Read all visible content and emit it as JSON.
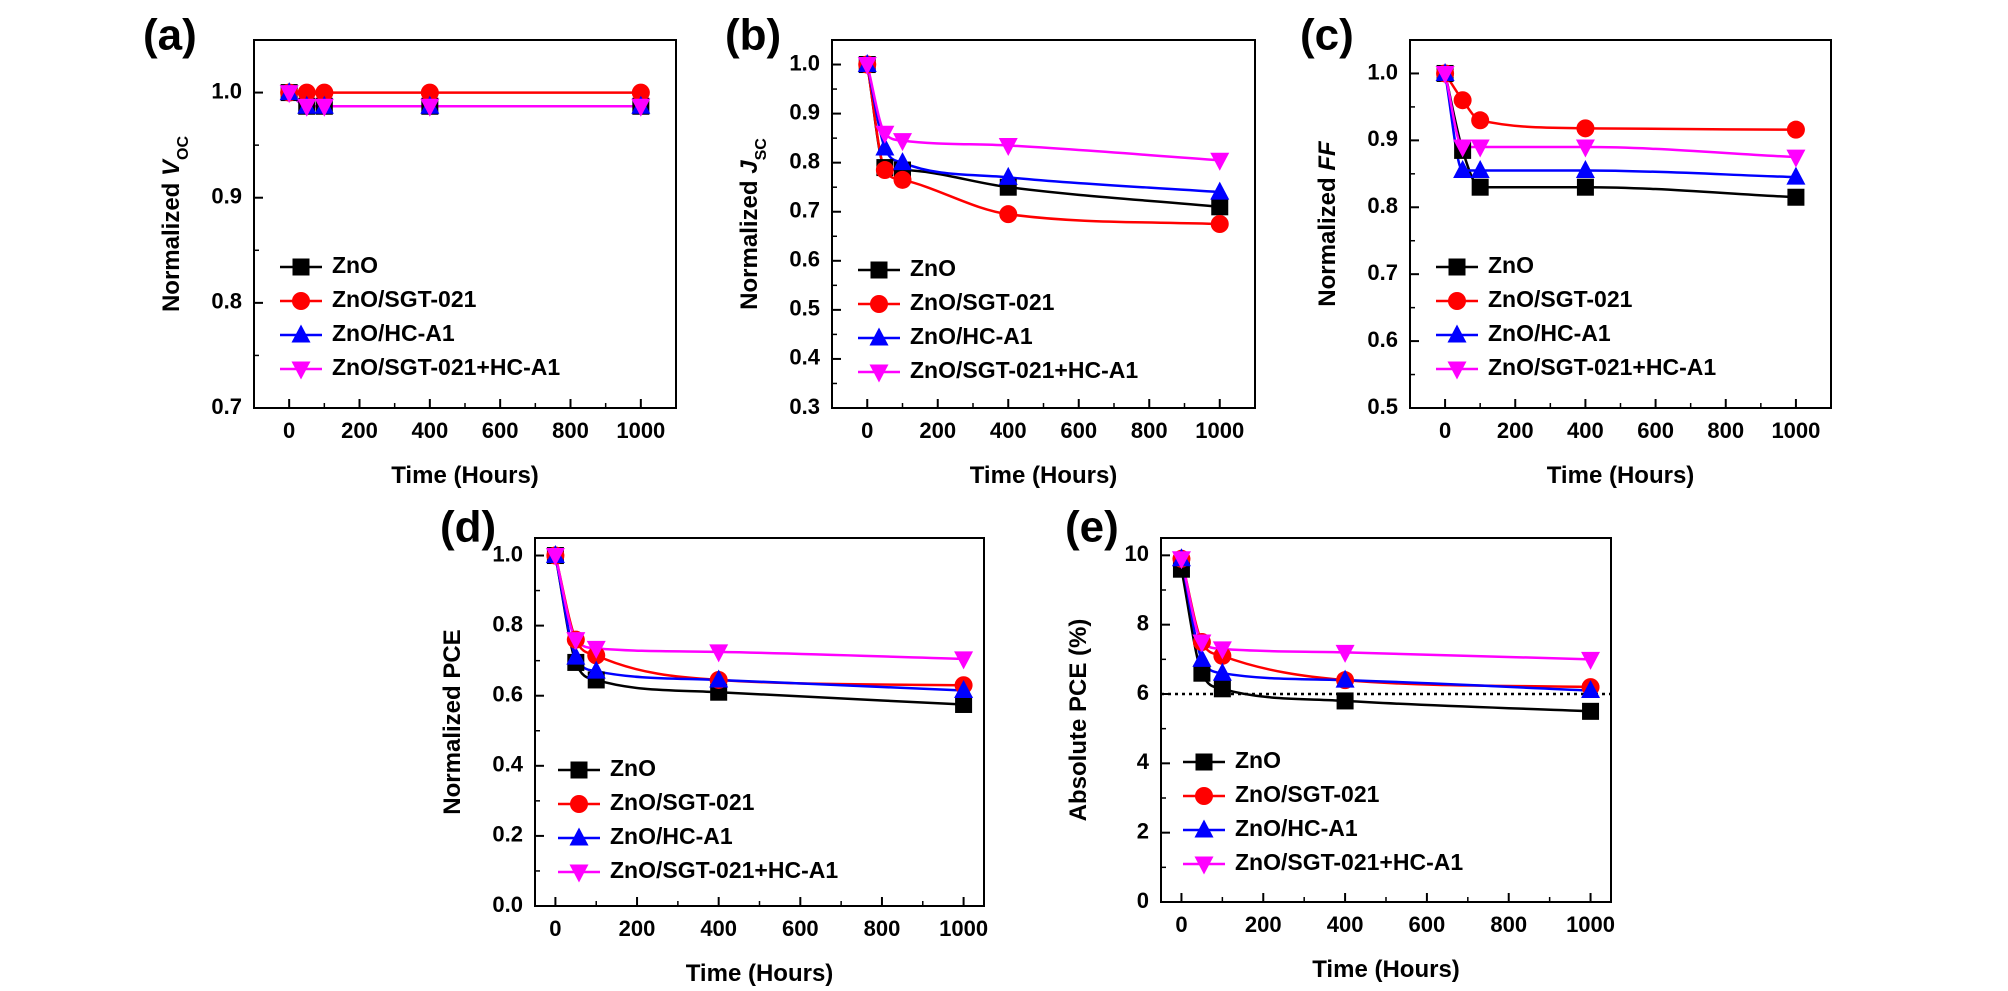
{
  "chart_data": [
    {
      "type": "line",
      "panel_label": "(a)",
      "title": "",
      "ylabel_main": "Normalized ",
      "ylabel_italic": "V",
      "ylabel_sub": "OC",
      "xlabel": "Time (Hours)",
      "x": [
        0,
        50,
        100,
        400,
        1000
      ],
      "xlim": [
        -100,
        1100
      ],
      "ylim": [
        0.7,
        1.05
      ],
      "xticks": [
        0,
        200,
        400,
        600,
        800,
        1000
      ],
      "yticks": [
        0.7,
        0.8,
        0.9,
        1.0
      ],
      "ytick_labels": [
        "0.7",
        "0.8",
        "0.9",
        "1.0"
      ],
      "legend_position": "lower-left",
      "series": [
        {
          "name": "ZnO",
          "color": "#000000",
          "marker": "square",
          "values": [
            1.0,
            0.987,
            0.987,
            0.987,
            0.987
          ]
        },
        {
          "name": "ZnO/SGT-021",
          "color": "#ff0000",
          "marker": "circle",
          "values": [
            1.0,
            1.0,
            1.0,
            1.0,
            1.0
          ]
        },
        {
          "name": "ZnO/HC-A1",
          "color": "#0000ff",
          "marker": "triangle-up",
          "values": [
            1.0,
            0.987,
            0.987,
            0.987,
            0.987
          ]
        },
        {
          "name": "ZnO/SGT-021+HC-A1",
          "color": "#ff00ff",
          "marker": "triangle-down",
          "values": [
            1.0,
            0.987,
            0.987,
            0.987,
            0.987
          ]
        }
      ]
    },
    {
      "type": "line",
      "panel_label": "(b)",
      "title": "",
      "ylabel_main": "Normalized ",
      "ylabel_italic": "J",
      "ylabel_sub": "SC",
      "xlabel": "Time (Hours)",
      "x": [
        0,
        50,
        100,
        400,
        1000
      ],
      "xlim": [
        -100,
        1100
      ],
      "ylim": [
        0.3,
        1.05
      ],
      "xticks": [
        0,
        200,
        400,
        600,
        800,
        1000
      ],
      "yticks": [
        0.3,
        0.4,
        0.5,
        0.6,
        0.7,
        0.8,
        0.9,
        1.0
      ],
      "ytick_labels": [
        "0.3",
        "0.4",
        "0.5",
        "0.6",
        "0.7",
        "0.8",
        "0.9",
        "1.0"
      ],
      "legend_position": "lower-left",
      "series": [
        {
          "name": "ZnO",
          "color": "#000000",
          "marker": "square",
          "values": [
            1.0,
            0.79,
            0.785,
            0.75,
            0.71
          ]
        },
        {
          "name": "ZnO/SGT-021",
          "color": "#ff0000",
          "marker": "circle",
          "values": [
            1.0,
            0.785,
            0.765,
            0.695,
            0.675
          ]
        },
        {
          "name": "ZnO/HC-A1",
          "color": "#0000ff",
          "marker": "triangle-up",
          "values": [
            1.0,
            0.83,
            0.8,
            0.77,
            0.74
          ]
        },
        {
          "name": "ZnO/SGT-021+HC-A1",
          "color": "#ff00ff",
          "marker": "triangle-down",
          "values": [
            1.0,
            0.86,
            0.845,
            0.835,
            0.805
          ]
        }
      ]
    },
    {
      "type": "line",
      "panel_label": "(c)",
      "title": "",
      "ylabel_main": "Normalized ",
      "ylabel_italic": "FF",
      "ylabel_sub": "",
      "xlabel": "Time (Hours)",
      "x": [
        0,
        50,
        100,
        400,
        1000
      ],
      "xlim": [
        -100,
        1100
      ],
      "ylim": [
        0.5,
        1.05
      ],
      "xticks": [
        0,
        200,
        400,
        600,
        800,
        1000
      ],
      "yticks": [
        0.5,
        0.6,
        0.7,
        0.8,
        0.9,
        1.0
      ],
      "ytick_labels": [
        "0.5",
        "0.6",
        "0.7",
        "0.8",
        "0.9",
        "1.0"
      ],
      "legend_position": "lower-left",
      "series": [
        {
          "name": "ZnO",
          "color": "#000000",
          "marker": "square",
          "values": [
            1.0,
            0.885,
            0.83,
            0.83,
            0.815
          ]
        },
        {
          "name": "ZnO/SGT-021",
          "color": "#ff0000",
          "marker": "circle",
          "values": [
            1.0,
            0.96,
            0.93,
            0.918,
            0.916
          ]
        },
        {
          "name": "ZnO/HC-A1",
          "color": "#0000ff",
          "marker": "triangle-up",
          "values": [
            1.0,
            0.855,
            0.855,
            0.855,
            0.845
          ]
        },
        {
          "name": "ZnO/SGT-021+HC-A1",
          "color": "#ff00ff",
          "marker": "triangle-down",
          "values": [
            1.0,
            0.89,
            0.89,
            0.89,
            0.875
          ]
        }
      ]
    },
    {
      "type": "line",
      "panel_label": "(d)",
      "title": "",
      "ylabel_main": "Normalized PCE",
      "ylabel_italic": "",
      "ylabel_sub": "",
      "xlabel": "Time (Hours)",
      "x": [
        0,
        50,
        100,
        400,
        1000
      ],
      "xlim": [
        -50,
        1050
      ],
      "ylim": [
        0.0,
        1.05
      ],
      "xticks": [
        0,
        200,
        400,
        600,
        800,
        1000
      ],
      "yticks": [
        0.0,
        0.2,
        0.4,
        0.6,
        0.8,
        1.0
      ],
      "ytick_labels": [
        "0.0",
        "0.2",
        "0.4",
        "0.6",
        "0.8",
        "1.0"
      ],
      "legend_position": "lower-left",
      "series": [
        {
          "name": "ZnO",
          "color": "#000000",
          "marker": "square",
          "values": [
            1.0,
            0.695,
            0.645,
            0.61,
            0.575
          ]
        },
        {
          "name": "ZnO/SGT-021",
          "color": "#ff0000",
          "marker": "circle",
          "values": [
            1.0,
            0.76,
            0.715,
            0.645,
            0.63
          ]
        },
        {
          "name": "ZnO/HC-A1",
          "color": "#0000ff",
          "marker": "triangle-up",
          "values": [
            1.0,
            0.71,
            0.67,
            0.645,
            0.615
          ]
        },
        {
          "name": "ZnO/SGT-021+HC-A1",
          "color": "#ff00ff",
          "marker": "triangle-down",
          "values": [
            1.0,
            0.76,
            0.735,
            0.725,
            0.705
          ]
        }
      ]
    },
    {
      "type": "line",
      "panel_label": "(e)",
      "title": "",
      "ylabel_main": "Absolute PCE (%)",
      "ylabel_italic": "",
      "ylabel_sub": "",
      "xlabel": "Time (Hours)",
      "x": [
        0,
        50,
        100,
        400,
        1000
      ],
      "xlim": [
        -50,
        1050
      ],
      "ylim": [
        0,
        10.5
      ],
      "xticks": [
        0,
        200,
        400,
        600,
        800,
        1000
      ],
      "yticks": [
        0,
        2,
        4,
        6,
        8,
        10
      ],
      "ytick_labels": [
        "0",
        "2",
        "4",
        "6",
        "8",
        "10"
      ],
      "reference_line": {
        "y": 6,
        "style": "dotted"
      },
      "legend_position": "lower-left",
      "series": [
        {
          "name": "ZnO",
          "color": "#000000",
          "marker": "square",
          "values": [
            9.6,
            6.6,
            6.15,
            5.8,
            5.5
          ]
        },
        {
          "name": "ZnO/SGT-021",
          "color": "#ff0000",
          "marker": "circle",
          "values": [
            9.9,
            7.5,
            7.1,
            6.4,
            6.2
          ]
        },
        {
          "name": "ZnO/HC-A1",
          "color": "#0000ff",
          "marker": "triangle-up",
          "values": [
            9.9,
            7.0,
            6.6,
            6.4,
            6.1
          ]
        },
        {
          "name": "ZnO/SGT-021+HC-A1",
          "color": "#ff00ff",
          "marker": "triangle-down",
          "values": [
            9.9,
            7.5,
            7.3,
            7.2,
            7.0
          ]
        }
      ]
    }
  ]
}
